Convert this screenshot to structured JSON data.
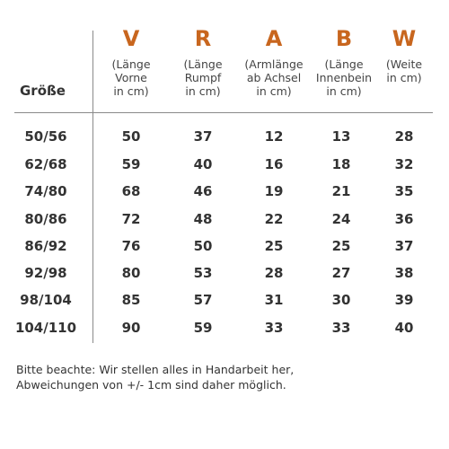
{
  "table": {
    "size_header": "Größe",
    "columns": [
      {
        "letter": "V",
        "description": "(Länge\nVorne\nin cm)"
      },
      {
        "letter": "R",
        "description": "(Länge\nRumpf\nin cm)"
      },
      {
        "letter": "A",
        "description": "(Armlänge\nab Achsel\nin cm)"
      },
      {
        "letter": "B",
        "description": "(Länge\nInnenbein\nin cm)"
      },
      {
        "letter": "W",
        "description": "(Weite\nin cm)"
      }
    ],
    "rows": [
      {
        "size": "50/56",
        "values": [
          "50",
          "37",
          "12",
          "13",
          "28"
        ]
      },
      {
        "size": "62/68",
        "values": [
          "59",
          "40",
          "16",
          "18",
          "32"
        ]
      },
      {
        "size": "74/80",
        "values": [
          "68",
          "46",
          "19",
          "21",
          "35"
        ]
      },
      {
        "size": "80/86",
        "values": [
          "72",
          "48",
          "22",
          "24",
          "36"
        ]
      },
      {
        "size": "86/92",
        "values": [
          "76",
          "50",
          "25",
          "25",
          "37"
        ]
      },
      {
        "size": "92/98",
        "values": [
          "80",
          "53",
          "28",
          "27",
          "38"
        ]
      },
      {
        "size": "98/104",
        "values": [
          "85",
          "57",
          "31",
          "30",
          "39"
        ]
      },
      {
        "size": "104/110",
        "values": [
          "90",
          "59",
          "33",
          "33",
          "40"
        ]
      }
    ]
  },
  "note": "Bitte beachte: Wir stellen alles in Handarbeit her,\nAbweichungen von +/- 1cm sind daher möglich.",
  "colors": {
    "accent": "#c8661e",
    "text": "#333333",
    "line": "#8a8a8a"
  }
}
